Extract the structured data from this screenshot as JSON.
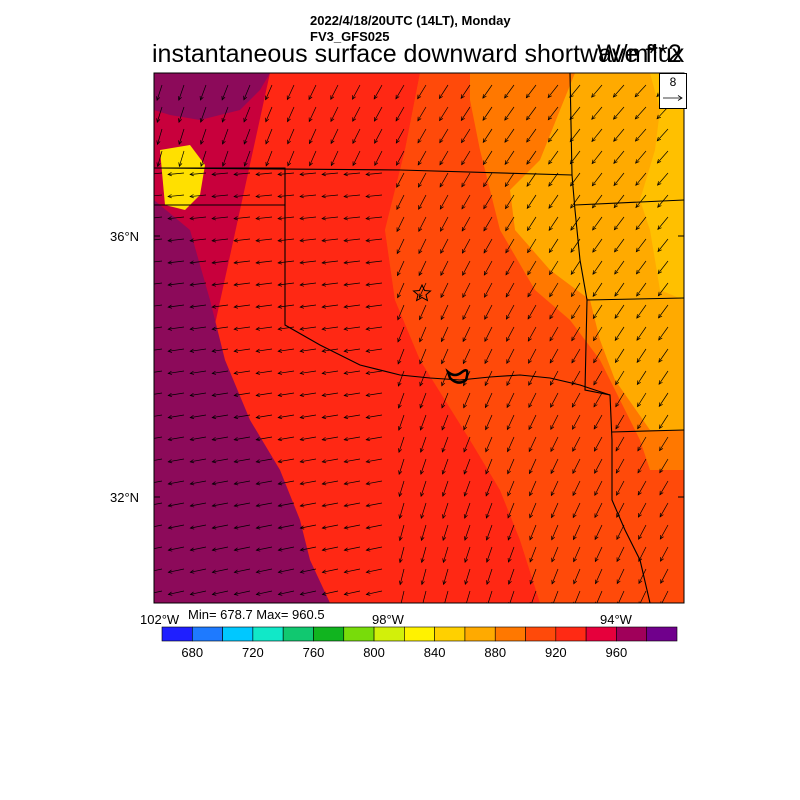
{
  "header": {
    "datetime": "2022/4/18/20UTC (14LT), Monday",
    "model": "FV3_GFS025"
  },
  "map": {
    "title": "instantaneous surface downward shortwave flux",
    "units": "W/m**2",
    "lat_labels": [
      "36°N",
      "32°N"
    ],
    "lon_labels": [
      "102°W",
      "98°W",
      "94°W"
    ],
    "min_max": "Min= 678.7 Max= 960.5",
    "vector_reference": "8",
    "marker": "star"
  },
  "colorbar": {
    "colors": [
      "#1f1fff",
      "#1e7aff",
      "#00c8ff",
      "#11e8c8",
      "#11c870",
      "#11b41f",
      "#78dc0a",
      "#d2f00a",
      "#fff200",
      "#ffd000",
      "#ffaa00",
      "#ff7800",
      "#ff4a0a",
      "#ff2a14",
      "#e6003c",
      "#a0005a",
      "#70008c"
    ],
    "labels": [
      "680",
      "720",
      "760",
      "800",
      "840",
      "880",
      "920",
      "960"
    ]
  },
  "field_colors": {
    "darkpurple": "#8c0a5a",
    "crimson": "#c8003c",
    "red": "#ff2814",
    "redorange": "#ff4a0a",
    "orange": "#ff7800",
    "amber": "#ffaa00",
    "gold": "#ffc000"
  }
}
